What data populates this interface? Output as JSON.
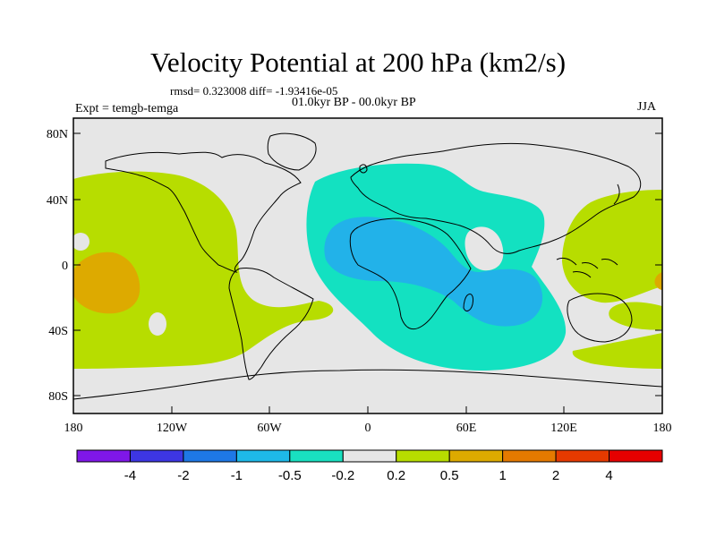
{
  "title": "Velocity Potential at 200 hPa (km2/s)",
  "stats": "rmsd= 0.323008  diff= -1.93416e-05",
  "period": "01.0kyr BP - 00.0kyr BP",
  "expt": "Expt = temgb-temga",
  "season": "JJA",
  "y_ticks": [
    "80N",
    "40N",
    "0",
    "40S",
    "80S"
  ],
  "x_ticks": [
    "180",
    "120W",
    "60W",
    "0",
    "60E",
    "120E",
    "180"
  ],
  "colors": {
    "land_outline": "#000000",
    "neutral": "#e6e6e6",
    "light_green": "#b7dd00",
    "orange": "#ddaa00",
    "cyan": "#13e1c1",
    "blue": "#22b2e9"
  },
  "colorbar": {
    "colors": [
      "#7f17e8",
      "#3d36e3",
      "#1e78e6",
      "#1eb9e8",
      "#19e0c0",
      "#e6e6e6",
      "#b7dd00",
      "#ddaa00",
      "#e57a00",
      "#e63a00",
      "#e60000"
    ],
    "labels": [
      "-4",
      "-2",
      "-1",
      "-0.5",
      "-0.2",
      "0.2",
      "0.5",
      "1",
      "2",
      "4"
    ]
  }
}
